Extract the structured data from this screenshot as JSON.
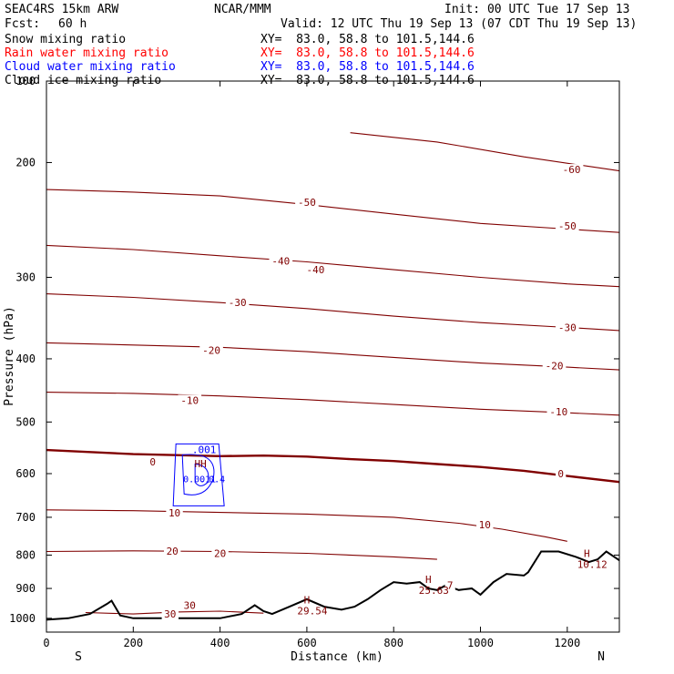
{
  "header": {
    "model": "SEAC4RS 15km ARW",
    "org": "NCAR/MMM",
    "init": "Init: 00 UTC Tue 17 Sep 13",
    "fcst_label": "Fcst:",
    "fcst_value": "60 h",
    "valid": "Valid: 12 UTC Thu 19 Sep 13 (07 CDT Thu 19 Sep 13)"
  },
  "fields": [
    {
      "name": "Snow mixing ratio",
      "xy": "XY=  83.0, 58.8 to 101.5,144.6",
      "color": "#000000"
    },
    {
      "name": "Rain water mixing ratio",
      "xy": "XY=  83.0, 58.8 to 101.5,144.6",
      "color": "#ff0000"
    },
    {
      "name": "Cloud water mixing ratio",
      "xy": "XY=  83.0, 58.8 to 101.5,144.6",
      "color": "#0000ff"
    },
    {
      "name": "Cloud ice mixing ratio",
      "xy": "XY=  83.0, 58.8 to 101.5,144.6",
      "color": "#000000"
    }
  ],
  "chart_data": {
    "type": "line",
    "xlabel": "Distance (km)",
    "ylabel": "Pressure (hPa)",
    "xlim": [
      0,
      1320
    ],
    "ylim": [
      150,
      1050
    ],
    "yscale": "log",
    "x_ticks": [
      0,
      200,
      400,
      600,
      800,
      1000,
      1200
    ],
    "y_ticks": [
      100,
      200,
      300,
      400,
      500,
      600,
      700,
      800,
      900,
      1000
    ],
    "x_end_labels": {
      "left": "S",
      "right": "N"
    },
    "temperature_color": "#800000",
    "terrain_color": "#000000",
    "cloud_color": "#0000ff",
    "temperature_isotherms": [
      {
        "value": 0,
        "bold": true,
        "points": [
          [
            0,
            552
          ],
          [
            100,
            556
          ],
          [
            200,
            560
          ],
          [
            300,
            562
          ],
          [
            400,
            564
          ],
          [
            500,
            563
          ],
          [
            600,
            565
          ],
          [
            700,
            570
          ],
          [
            800,
            574
          ],
          [
            900,
            580
          ],
          [
            1000,
            586
          ],
          [
            1100,
            594
          ],
          [
            1200,
            605
          ],
          [
            1320,
            618
          ]
        ]
      },
      {
        "value": -10,
        "points": [
          [
            0,
            450
          ],
          [
            200,
            452
          ],
          [
            400,
            456
          ],
          [
            600,
            462
          ],
          [
            800,
            470
          ],
          [
            1000,
            478
          ],
          [
            1200,
            484
          ],
          [
            1320,
            488
          ]
        ]
      },
      {
        "value": -20,
        "points": [
          [
            0,
            378
          ],
          [
            200,
            381
          ],
          [
            400,
            384
          ],
          [
            600,
            390
          ],
          [
            800,
            398
          ],
          [
            1000,
            406
          ],
          [
            1200,
            412
          ],
          [
            1320,
            416
          ]
        ]
      },
      {
        "value": -30,
        "points": [
          [
            0,
            318
          ],
          [
            200,
            322
          ],
          [
            400,
            328
          ],
          [
            600,
            335
          ],
          [
            800,
            344
          ],
          [
            1000,
            352
          ],
          [
            1200,
            358
          ],
          [
            1320,
            362
          ]
        ]
      },
      {
        "value": -40,
        "points": [
          [
            0,
            268
          ],
          [
            200,
            272
          ],
          [
            400,
            278
          ],
          [
            600,
            284
          ],
          [
            800,
            292
          ],
          [
            1000,
            300
          ],
          [
            1200,
            307
          ],
          [
            1320,
            310
          ]
        ]
      },
      {
        "value": -50,
        "points": [
          [
            0,
            220
          ],
          [
            200,
            222
          ],
          [
            400,
            225
          ],
          [
            600,
            232
          ],
          [
            800,
            240
          ],
          [
            1000,
            248
          ],
          [
            1200,
            253
          ],
          [
            1320,
            256
          ]
        ]
      },
      {
        "value": -60,
        "points": [
          [
            700,
            180
          ],
          [
            900,
            186
          ],
          [
            1100,
            196
          ],
          [
            1320,
            206
          ]
        ]
      },
      {
        "value": 10,
        "points": [
          [
            0,
            682
          ],
          [
            200,
            684
          ],
          [
            400,
            688
          ],
          [
            600,
            692
          ],
          [
            800,
            700
          ],
          [
            950,
            715
          ],
          [
            1050,
            730
          ],
          [
            1150,
            750
          ],
          [
            1200,
            762
          ]
        ]
      },
      {
        "value": 20,
        "points": [
          [
            0,
            790
          ],
          [
            200,
            788
          ],
          [
            400,
            790
          ],
          [
            600,
            795
          ],
          [
            800,
            805
          ],
          [
            900,
            812
          ]
        ]
      },
      {
        "value": 30,
        "points": [
          [
            90,
            980
          ],
          [
            200,
            985
          ],
          [
            300,
            978
          ],
          [
            400,
            975
          ],
          [
            500,
            982
          ]
        ]
      }
    ],
    "isotherm_labels": [
      {
        "text": "0",
        "x": 245,
        "y": 575
      },
      {
        "text": "0",
        "x": 1185,
        "y": 600
      },
      {
        "text": "-10",
        "x": 330,
        "y": 463
      },
      {
        "text": "-10",
        "x": 1180,
        "y": 482
      },
      {
        "text": "-20",
        "x": 380,
        "y": 388
      },
      {
        "text": "-20",
        "x": 1170,
        "y": 410
      },
      {
        "text": "-30",
        "x": 440,
        "y": 328
      },
      {
        "text": "-30",
        "x": 1200,
        "y": 358
      },
      {
        "text": "-40",
        "x": 540,
        "y": 283
      },
      {
        "text": "-40",
        "x": 620,
        "y": 292
      },
      {
        "text": "-50",
        "x": 600,
        "y": 230
      },
      {
        "text": "-50",
        "x": 1200,
        "y": 250
      },
      {
        "text": "-60",
        "x": 1210,
        "y": 205
      },
      {
        "text": "10",
        "x": 295,
        "y": 689
      },
      {
        "text": "10",
        "x": 1010,
        "y": 718
      },
      {
        "text": "20",
        "x": 290,
        "y": 788
      },
      {
        "text": "20",
        "x": 400,
        "y": 795
      },
      {
        "text": "30",
        "x": 330,
        "y": 955
      },
      {
        "text": "30",
        "x": 285,
        "y": 985
      },
      {
        "text": "7",
        "x": 930,
        "y": 890
      }
    ],
    "highs": [
      {
        "mark": "H",
        "value": "10.12",
        "x": 1245,
        "y": 810
      },
      {
        "mark": "H",
        "value": "25.63",
        "x": 880,
        "y": 888
      },
      {
        "mark": "H",
        "value": "29.54",
        "x": 600,
        "y": 955
      },
      {
        "mark": "HH",
        "value": ".001",
        "x": 355,
        "y": 590
      }
    ],
    "cloud_water_contour_label": ".001",
    "cloud_labels": [
      "0.0.1",
      "0.1",
      "0.4"
    ],
    "terrain": [
      [
        0,
        1005
      ],
      [
        50,
        1000
      ],
      [
        100,
        985
      ],
      [
        140,
        950
      ],
      [
        150,
        940
      ],
      [
        170,
        990
      ],
      [
        200,
        1000
      ],
      [
        300,
        1000
      ],
      [
        400,
        1000
      ],
      [
        450,
        985
      ],
      [
        480,
        955
      ],
      [
        500,
        975
      ],
      [
        520,
        985
      ],
      [
        560,
        960
      ],
      [
        600,
        935
      ],
      [
        640,
        960
      ],
      [
        680,
        970
      ],
      [
        710,
        960
      ],
      [
        740,
        935
      ],
      [
        770,
        905
      ],
      [
        800,
        880
      ],
      [
        830,
        885
      ],
      [
        860,
        880
      ],
      [
        880,
        900
      ],
      [
        900,
        905
      ],
      [
        920,
        890
      ],
      [
        950,
        905
      ],
      [
        980,
        900
      ],
      [
        1000,
        920
      ],
      [
        1030,
        880
      ],
      [
        1060,
        855
      ],
      [
        1100,
        860
      ],
      [
        1110,
        850
      ],
      [
        1140,
        790
      ],
      [
        1180,
        790
      ],
      [
        1220,
        805
      ],
      [
        1250,
        820
      ],
      [
        1270,
        812
      ],
      [
        1290,
        790
      ],
      [
        1320,
        815
      ]
    ]
  }
}
